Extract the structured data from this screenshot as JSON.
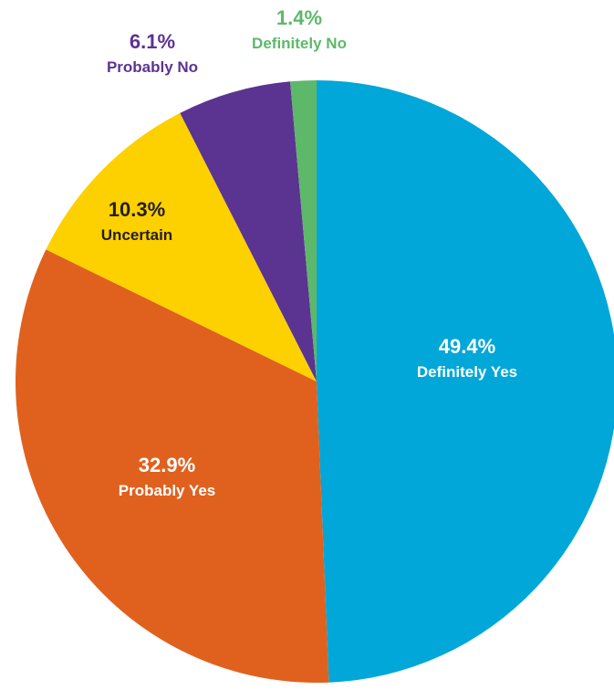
{
  "chart_data": {
    "type": "pie",
    "start_angle_deg": 0,
    "direction": "clockwise",
    "slices": [
      {
        "label": "Definitely Yes",
        "value": 49.4,
        "value_label": "49.4%",
        "color": "#00A7D8",
        "label_color": "#ffffff",
        "label_position": "inside"
      },
      {
        "label": "Probably Yes",
        "value": 32.9,
        "value_label": "32.9%",
        "color": "#E0611E",
        "label_color": "#ffffff",
        "label_position": "inside"
      },
      {
        "label": "Uncertain",
        "value": 10.3,
        "value_label": "10.3%",
        "color": "#FDD000",
        "label_color": "#231F20",
        "label_position": "inside"
      },
      {
        "label": "Probably No",
        "value": 6.1,
        "value_label": "6.1%",
        "color": "#5B3391",
        "label_color": "#5B3391",
        "label_position": "outside"
      },
      {
        "label": "Definitely No",
        "value": 1.4,
        "value_label": "1.4%",
        "color": "#5DB86A",
        "label_color": "#5DB86A",
        "label_position": "outside"
      }
    ]
  }
}
